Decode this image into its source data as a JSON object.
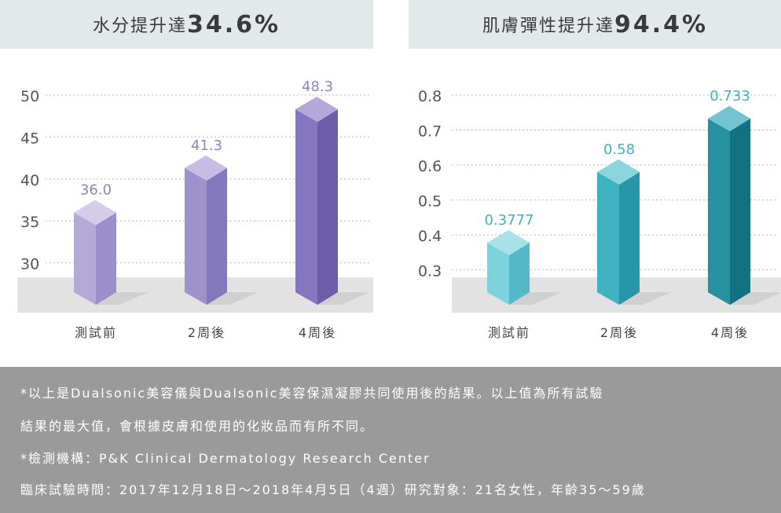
{
  "chart_data": [
    {
      "type": "bar",
      "title": "水分提升達",
      "title_highlight": "34.6%",
      "categories": [
        "測試前",
        "2周後",
        "4周後"
      ],
      "values": [
        36.0,
        41.3,
        48.3
      ],
      "value_labels": [
        "36.0",
        "41.3",
        "48.3"
      ],
      "yticks": [
        "30",
        "35",
        "40",
        "45",
        "50"
      ],
      "ylim": [
        25,
        50
      ],
      "grid": true,
      "colors": {
        "label": "#8e83c4",
        "bars": [
          {
            "front": "#b3aad8",
            "side": "#9a8fca",
            "top": "#d3cdea"
          },
          {
            "front": "#9e92cc",
            "side": "#8478bd",
            "top": "#c5bde3"
          },
          {
            "front": "#8576bf",
            "side": "#6c5ea9",
            "top": "#b3a8da"
          }
        ]
      }
    },
    {
      "type": "bar",
      "title": "肌膚彈性提升達",
      "title_highlight": "94.4%",
      "categories": [
        "測試前",
        "2周後",
        "4周後"
      ],
      "values": [
        0.3777,
        0.58,
        0.733
      ],
      "value_labels": [
        "0.3777",
        "0.58",
        "0.733"
      ],
      "yticks": [
        "0.3",
        "0.4",
        "0.5",
        "0.6",
        "0.7",
        "0.8"
      ],
      "ylim": [
        0.2,
        0.8
      ],
      "grid": true,
      "colors": {
        "label": "#3fb2c2",
        "bars": [
          {
            "front": "#7dd2dd",
            "side": "#55b8c8",
            "top": "#a9e1e8"
          },
          {
            "front": "#3fb2c2",
            "side": "#2696a8",
            "top": "#8bd5df"
          },
          {
            "front": "#26929f",
            "side": "#137282",
            "top": "#72c5d0"
          }
        ]
      }
    }
  ],
  "footer": {
    "lines": [
      "*以上是Dualsonic美容儀與Dualsonic美容保濕凝膠共同使用後的結果。以上值為所有試驗",
      "結果的最大值，會根據皮膚和使用的化妝品而有所不同。",
      "*檢測機構：P&K Clinical Dermatology Research Center",
      "臨床試驗時間：2017年12月18日～2018年4月5日（4週）研究對象：21名女性，年齡35～59歲"
    ]
  }
}
